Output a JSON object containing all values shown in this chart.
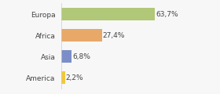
{
  "categories": [
    "America",
    "Asia",
    "Africa",
    "Europa"
  ],
  "values": [
    2.2,
    6.8,
    27.4,
    63.7
  ],
  "labels": [
    "2,2%",
    "6,8%",
    "27,4%",
    "63,7%"
  ],
  "bar_colors": [
    "#f0c83a",
    "#7b8ec8",
    "#e8a868",
    "#b0c878"
  ],
  "background_color": "#f7f7f7",
  "text_color": "#444444",
  "figsize": [
    2.8,
    1.2
  ],
  "dpi": 100,
  "xlim": [
    0,
    90
  ],
  "bar_height": 0.6,
  "label_fontsize": 6.5,
  "tick_fontsize": 6.5
}
